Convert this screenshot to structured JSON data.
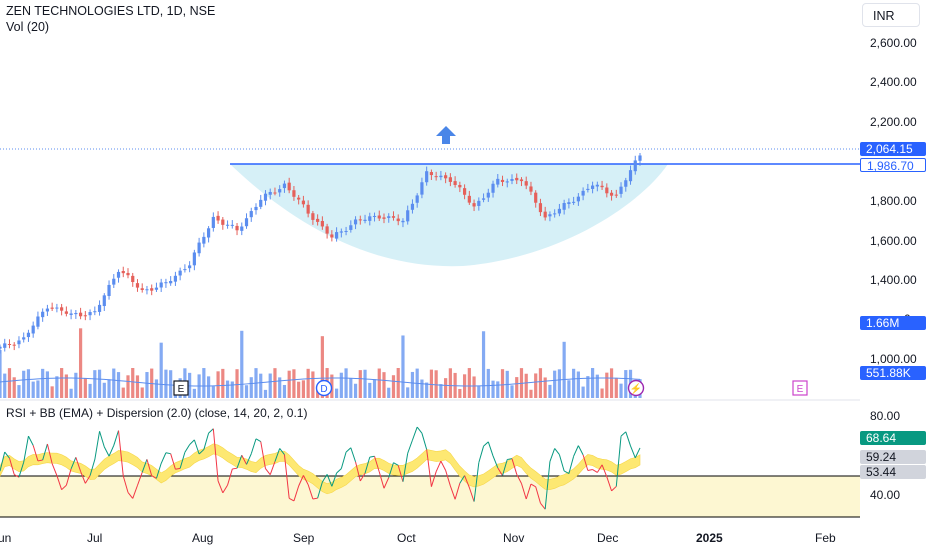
{
  "header": {
    "symbol_title": "ZEN TECHNOLOGIES LTD, 1D, NSE",
    "volume_label": "Vol (20)",
    "currency": "INR"
  },
  "price_axis": {
    "ticks": [
      "2,600.00",
      "2,400.00",
      "2,200.00",
      "1,800.00",
      "1,600.00",
      "1,400.00",
      "1,000.00"
    ],
    "hidden_tick_fragment": "0",
    "last_price_tag": "2,064.15",
    "level_tag": "1,986.70",
    "volume_tag": "1.66M",
    "volume_ma_tag": "551.88K"
  },
  "rsi_panel": {
    "title": "RSI + BB (EMA) + Dispersion (2.0) (close, 14, 20, 2, 0.1)",
    "ticks": [
      "80.00",
      "40.00"
    ],
    "rsi_tag": "68.64",
    "band_upper_tag": "59.24",
    "band_lower_tag": "53.44"
  },
  "time_axis": {
    "labels": [
      "Jun",
      "Jul",
      "Aug",
      "Sep",
      "Oct",
      "Nov",
      "Dec",
      "2025",
      "Feb"
    ]
  },
  "event_markers": {
    "earnings": "E",
    "dividend": "D",
    "split": "⚡"
  },
  "colors": {
    "up": "#5b8def",
    "down": "#e5605a",
    "cup_fill": "#d6f0f7",
    "resistance_line": "#2962ff",
    "rsi_band": "#fde872",
    "rsi_zone": "#fdf7d2",
    "arrow": "#4a86e8",
    "earnings_marker": "#cc44cc"
  },
  "chart_data": {
    "type": "candlestick",
    "title": "ZEN TECHNOLOGIES LTD, 1D, NSE",
    "price_range": [
      900,
      2700
    ],
    "resistance_level": 1986.7,
    "last_close": 2064.15,
    "close_series": [
      {
        "date": "2024-06-03",
        "close": 1010
      },
      {
        "date": "2024-06-10",
        "close": 1060
      },
      {
        "date": "2024-06-17",
        "close": 1240
      },
      {
        "date": "2024-06-24",
        "close": 1190
      },
      {
        "date": "2024-07-01",
        "close": 1200
      },
      {
        "date": "2024-07-08",
        "close": 1440
      },
      {
        "date": "2024-07-15",
        "close": 1320
      },
      {
        "date": "2024-07-22",
        "close": 1360
      },
      {
        "date": "2024-07-29",
        "close": 1470
      },
      {
        "date": "2024-08-05",
        "close": 1720
      },
      {
        "date": "2024-08-12",
        "close": 1650
      },
      {
        "date": "2024-08-19",
        "close": 1820
      },
      {
        "date": "2024-08-26",
        "close": 1900
      },
      {
        "date": "2024-09-02",
        "close": 1750
      },
      {
        "date": "2024-09-09",
        "close": 1610
      },
      {
        "date": "2024-09-16",
        "close": 1700
      },
      {
        "date": "2024-09-23",
        "close": 1730
      },
      {
        "date": "2024-09-30",
        "close": 1700
      },
      {
        "date": "2024-10-07",
        "close": 1960
      },
      {
        "date": "2024-10-14",
        "close": 1930
      },
      {
        "date": "2024-10-21",
        "close": 1780
      },
      {
        "date": "2024-10-28",
        "close": 1920
      },
      {
        "date": "2024-11-04",
        "close": 1930
      },
      {
        "date": "2024-11-11",
        "close": 1720
      },
      {
        "date": "2024-11-18",
        "close": 1800
      },
      {
        "date": "2024-11-25",
        "close": 1900
      },
      {
        "date": "2024-12-02",
        "close": 1840
      },
      {
        "date": "2024-12-09",
        "close": 2064.15
      }
    ],
    "rsi": {
      "ylim": [
        28,
        88
      ],
      "zone": [
        40,
        53.44
      ],
      "last_rsi": 68.64,
      "band_upper": 59.24,
      "band_lower": 53.44
    },
    "volume": {
      "last_volume": "1.66M",
      "ma20": "551.88K"
    }
  }
}
